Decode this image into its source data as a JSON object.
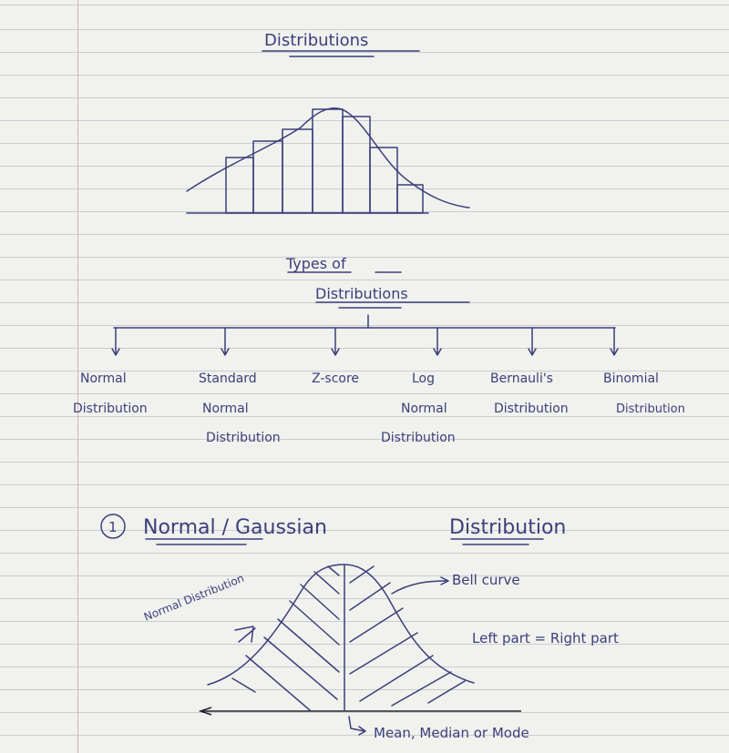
{
  "title": "Distributions",
  "types_heading": [
    "Types of",
    "Distributions"
  ],
  "types": [
    [
      "Normal",
      "Distribution"
    ],
    [
      "Standard",
      "Normal",
      "Distribution"
    ],
    [
      "Z-score"
    ],
    [
      "Log",
      "Normal",
      "Distribution"
    ],
    [
      "Bernauli's",
      "Distribution"
    ],
    [
      "Binomial",
      "Distribution"
    ]
  ],
  "section": {
    "number": "1",
    "title_a": "Normal / Gaussian",
    "title_b": "Distribution"
  },
  "annotations": {
    "bell_curve": "Bell curve",
    "normal_distribution": "Normal Distribution",
    "equality": "Left part = Right part",
    "center": "Mean, Median or Mode"
  }
}
